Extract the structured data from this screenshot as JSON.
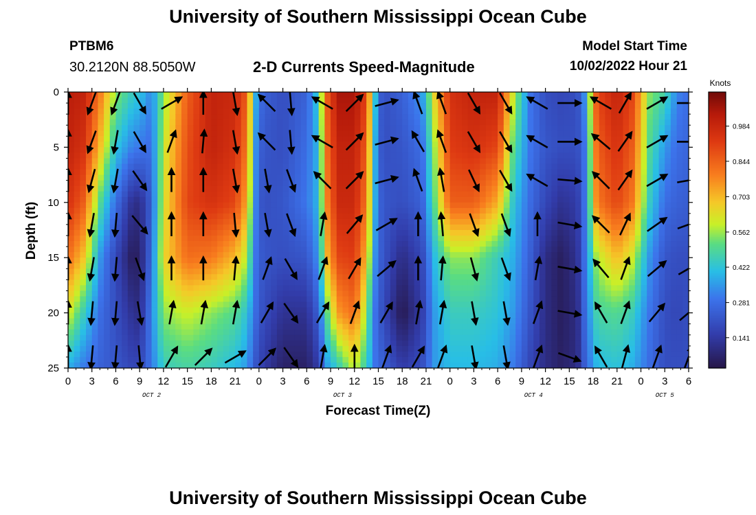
{
  "page": {
    "title_top": "University of Southern Mississippi Ocean Cube",
    "title_bottom": "University of Southern Mississippi Ocean Cube",
    "station_id": "PTBM6",
    "station_coords": "30.2120N  88.5050W",
    "product_title": "2-D Currents Speed-Magnitude",
    "model_start_label": "Model Start Time",
    "model_start_value": "10/02/2022 Hour 21"
  },
  "chart_data": {
    "type": "heatmap",
    "title": "2-D Currents Speed-Magnitude",
    "xlabel": "Forecast Time(Z)",
    "ylabel": "Depth (ft)",
    "colorbar_label": "Knots",
    "colorbar_ticks": [
      0.141,
      0.281,
      0.422,
      0.562,
      0.703,
      0.844,
      0.984
    ],
    "colorbar_tick_labels": [
      "0.141",
      "0.281",
      "0.422",
      "0.562",
      "0.703",
      "0.844",
      "0.984"
    ],
    "vlim": [
      0.02,
      1.12
    ],
    "y_ticks": [
      0,
      5,
      10,
      15,
      20,
      25
    ],
    "y_tick_labels": [
      "0",
      "5",
      "10",
      "15",
      "20",
      "25"
    ],
    "ylim": [
      0,
      25
    ],
    "y_inverted": true,
    "xlim": [
      0,
      78
    ],
    "x_tick_labels": [
      "0",
      "3",
      "6",
      "9",
      "12",
      "15",
      "18",
      "21",
      "0",
      "3",
      "6",
      "9",
      "12",
      "15",
      "18",
      "21",
      "0",
      "3",
      "6",
      "9",
      "12",
      "15",
      "18",
      "21",
      "0",
      "3",
      "6"
    ],
    "date_labels": [
      {
        "label": "OCT 2",
        "x": 10.5
      },
      {
        "label": "OCT 3",
        "x": 34.5
      },
      {
        "label": "OCT 4",
        "x": 58.5
      },
      {
        "label": "OCT 5",
        "x": 75
      }
    ],
    "speed_profile_columns": [
      {
        "x": 0,
        "s": [
          1.02,
          1.0,
          0.95,
          0.82,
          0.62,
          0.38
        ]
      },
      {
        "x": 2,
        "s": [
          1.0,
          0.95,
          0.85,
          0.68,
          0.45,
          0.3
        ]
      },
      {
        "x": 4,
        "s": [
          0.8,
          0.7,
          0.5,
          0.35,
          0.28,
          0.25
        ]
      },
      {
        "x": 6,
        "s": [
          0.55,
          0.42,
          0.28,
          0.18,
          0.2,
          0.22
        ]
      },
      {
        "x": 8,
        "s": [
          0.45,
          0.32,
          0.12,
          0.05,
          0.12,
          0.18
        ]
      },
      {
        "x": 9,
        "s": [
          0.42,
          0.3,
          0.1,
          0.06,
          0.1,
          0.18
        ]
      },
      {
        "x": 10.5,
        "s": [
          0.32,
          0.28,
          0.25,
          0.28,
          0.32,
          0.3
        ]
      },
      {
        "x": 12,
        "s": [
          0.55,
          0.6,
          0.62,
          0.65,
          0.55,
          0.45
        ]
      },
      {
        "x": 15,
        "s": [
          0.85,
          0.88,
          0.9,
          0.82,
          0.6,
          0.48
        ]
      },
      {
        "x": 18,
        "s": [
          1.0,
          1.0,
          0.95,
          0.8,
          0.55,
          0.45
        ]
      },
      {
        "x": 21,
        "s": [
          0.98,
          0.95,
          0.9,
          0.7,
          0.5,
          0.4
        ]
      },
      {
        "x": 22.5,
        "s": [
          0.85,
          0.8,
          0.72,
          0.58,
          0.42,
          0.35
        ]
      },
      {
        "x": 23.5,
        "s": [
          0.4,
          0.35,
          0.33,
          0.3,
          0.28,
          0.22
        ]
      },
      {
        "x": 24.5,
        "s": [
          0.25,
          0.22,
          0.2,
          0.22,
          0.2,
          0.15
        ]
      },
      {
        "x": 27,
        "s": [
          0.2,
          0.2,
          0.22,
          0.2,
          0.12,
          0.06
        ]
      },
      {
        "x": 30,
        "s": [
          0.25,
          0.28,
          0.3,
          0.22,
          0.12,
          0.06
        ]
      },
      {
        "x": 31.5,
        "s": [
          0.45,
          0.4,
          0.4,
          0.35,
          0.25,
          0.15
        ]
      },
      {
        "x": 32.5,
        "s": [
          0.85,
          0.82,
          0.78,
          0.7,
          0.5,
          0.35
        ]
      },
      {
        "x": 34,
        "s": [
          1.05,
          1.0,
          0.98,
          0.9,
          0.75,
          0.45
        ]
      },
      {
        "x": 36,
        "s": [
          1.05,
          1.0,
          0.98,
          0.92,
          0.82,
          0.6
        ]
      },
      {
        "x": 37.5,
        "s": [
          0.9,
          0.85,
          0.8,
          0.7,
          0.55,
          0.45
        ]
      },
      {
        "x": 38.5,
        "s": [
          0.45,
          0.4,
          0.4,
          0.35,
          0.3,
          0.3
        ]
      },
      {
        "x": 39.5,
        "s": [
          0.2,
          0.2,
          0.22,
          0.22,
          0.2,
          0.25
        ]
      },
      {
        "x": 42,
        "s": [
          0.25,
          0.22,
          0.2,
          0.1,
          0.03,
          0.15
        ]
      },
      {
        "x": 44.5,
        "s": [
          0.35,
          0.28,
          0.25,
          0.18,
          0.15,
          0.2
        ]
      },
      {
        "x": 46,
        "s": [
          0.65,
          0.55,
          0.5,
          0.4,
          0.35,
          0.35
        ]
      },
      {
        "x": 48,
        "s": [
          0.95,
          0.92,
          0.85,
          0.55,
          0.45,
          0.4
        ]
      },
      {
        "x": 51,
        "s": [
          1.0,
          0.95,
          0.85,
          0.55,
          0.45,
          0.4
        ]
      },
      {
        "x": 54,
        "s": [
          1.0,
          0.9,
          0.72,
          0.45,
          0.42,
          0.38
        ]
      },
      {
        "x": 56,
        "s": [
          0.6,
          0.5,
          0.42,
          0.38,
          0.35,
          0.3
        ]
      },
      {
        "x": 58,
        "s": [
          0.3,
          0.3,
          0.28,
          0.25,
          0.22,
          0.18
        ]
      },
      {
        "x": 60,
        "s": [
          0.2,
          0.22,
          0.18,
          0.1,
          0.1,
          0.1
        ]
      },
      {
        "x": 62,
        "s": [
          0.18,
          0.2,
          0.12,
          0.05,
          0.05,
          0.06
        ]
      },
      {
        "x": 64,
        "s": [
          0.2,
          0.2,
          0.15,
          0.12,
          0.1,
          0.1
        ]
      },
      {
        "x": 65,
        "s": [
          0.35,
          0.3,
          0.3,
          0.3,
          0.28,
          0.25
        ]
      },
      {
        "x": 66.5,
        "s": [
          0.9,
          0.85,
          0.8,
          0.58,
          0.48,
          0.4
        ]
      },
      {
        "x": 69,
        "s": [
          1.0,
          0.95,
          0.9,
          0.7,
          0.5,
          0.42
        ]
      },
      {
        "x": 71,
        "s": [
          0.9,
          0.85,
          0.8,
          0.6,
          0.45,
          0.38
        ]
      },
      {
        "x": 73,
        "s": [
          0.55,
          0.5,
          0.45,
          0.35,
          0.3,
          0.28
        ]
      },
      {
        "x": 75,
        "s": [
          0.48,
          0.35,
          0.28,
          0.22,
          0.2,
          0.2
        ]
      },
      {
        "x": 76.5,
        "s": [
          0.32,
          0.28,
          0.25,
          0.2,
          0.18,
          0.2
        ]
      },
      {
        "x": 78,
        "s": [
          0.28,
          0.26,
          0.24,
          0.2,
          0.2,
          0.2
        ]
      }
    ],
    "profile_depths": [
      0,
      5,
      10,
      15,
      20,
      25
    ],
    "vector_times": [
      0,
      3,
      6,
      9,
      13,
      17,
      21,
      25,
      28,
      32,
      36,
      40,
      44,
      47,
      51,
      55,
      59,
      63,
      67,
      70,
      74,
      78
    ],
    "vector_depths": [
      1,
      4.5,
      8,
      12,
      16,
      20,
      24
    ],
    "vector_direction_columns_deg": [
      [
        0,
        0,
        0,
        0,
        0,
        0,
        0
      ],
      [
        -160,
        -160,
        -165,
        -170,
        -170,
        -175,
        -175
      ],
      [
        -160,
        -170,
        -170,
        -175,
        -175,
        -175,
        -175
      ],
      [
        150,
        150,
        145,
        140,
        160,
        170,
        175
      ],
      [
        60,
        20,
        0,
        0,
        0,
        10,
        30
      ],
      [
        0,
        5,
        0,
        0,
        0,
        10,
        45
      ],
      [
        170,
        170,
        170,
        175,
        5,
        10,
        60
      ],
      [
        -45,
        -45,
        170,
        170,
        20,
        30,
        45
      ],
      [
        175,
        175,
        160,
        160,
        150,
        145,
        145
      ],
      [
        -60,
        -60,
        -45,
        10,
        20,
        30,
        10
      ],
      [
        45,
        45,
        45,
        40,
        30,
        20,
        0
      ],
      [
        75,
        75,
        75,
        60,
        50,
        30,
        20
      ],
      [
        -20,
        -30,
        -20,
        0,
        0,
        10,
        30
      ],
      [
        -20,
        -20,
        -10,
        -5,
        5,
        10,
        20
      ],
      [
        150,
        150,
        155,
        160,
        165,
        170,
        170
      ],
      [
        150,
        150,
        150,
        160,
        160,
        170,
        170
      ],
      [
        -60,
        -60,
        -60,
        0,
        10,
        20,
        20
      ],
      [
        90,
        90,
        95,
        100,
        100,
        100,
        110
      ],
      [
        -60,
        -50,
        -45,
        -45,
        -40,
        -30,
        -30
      ],
      [
        30,
        35,
        35,
        25,
        20,
        20,
        15
      ],
      [
        60,
        60,
        60,
        55,
        50,
        40,
        20
      ],
      [
        90,
        90,
        80,
        70,
        60,
        50,
        20
      ]
    ]
  }
}
